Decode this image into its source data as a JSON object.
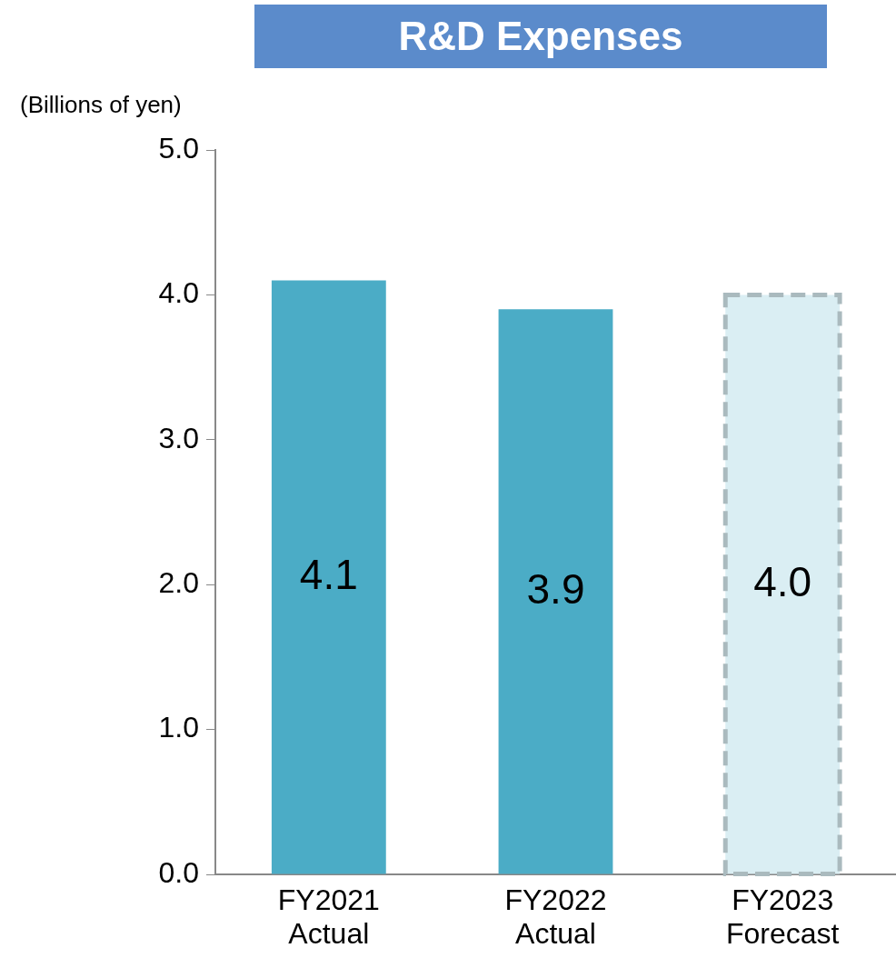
{
  "chart_data": {
    "type": "bar",
    "title": "R&D Expenses",
    "ylabel": "(Billions of yen)",
    "categories": [
      "FY2021\nActual",
      "FY2022\nActual",
      "FY2023\nForecast"
    ],
    "values": [
      4.1,
      3.9,
      4.0
    ],
    "colors": [
      "#4bacc6",
      "#4bacc6",
      "#daeef3"
    ],
    "value_labels": [
      "4.1",
      "3.9",
      "4.0"
    ],
    "ylim": [
      0,
      5
    ],
    "yticks": [
      {
        "value": 0,
        "label": "0.0"
      },
      {
        "value": 1,
        "label": "1.0"
      },
      {
        "value": 2,
        "label": "2.0"
      },
      {
        "value": 3,
        "label": "3.0"
      },
      {
        "value": 4,
        "label": "4.0"
      },
      {
        "value": 5,
        "label": "5.0"
      }
    ],
    "grid": false,
    "legend": false
  }
}
